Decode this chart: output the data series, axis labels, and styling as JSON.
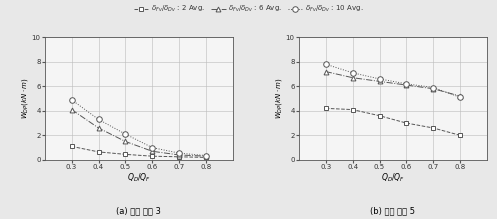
{
  "x": [
    0.3,
    0.4,
    0.5,
    0.6,
    0.7,
    0.8
  ],
  "left_series": {
    "sq": [
      1.1,
      0.65,
      0.45,
      0.3,
      0.25,
      0.2
    ],
    "tri": [
      4.1,
      2.6,
      1.5,
      0.7,
      0.4,
      0.3
    ],
    "circ": [
      4.9,
      3.3,
      2.1,
      1.0,
      0.55,
      0.35
    ]
  },
  "right_series": {
    "sq": [
      4.2,
      4.1,
      3.6,
      3.0,
      2.6,
      2.0
    ],
    "tri": [
      7.2,
      6.7,
      6.4,
      6.1,
      5.8,
      5.2
    ],
    "circ": [
      7.8,
      7.1,
      6.6,
      6.2,
      5.9,
      5.1
    ]
  },
  "xlim": [
    0.2,
    0.9
  ],
  "ylim": [
    0,
    10
  ],
  "xticks": [
    0.3,
    0.4,
    0.5,
    0.6,
    0.7,
    0.8
  ],
  "yticks": [
    0,
    2,
    4,
    6,
    8,
    10
  ],
  "xlabel": "$Q_D/Q_F$",
  "ylabel": "$W_{DP}$$(kN \\cdot m)$",
  "legend_labels": [
    "$\\delta_{Fv}/\\delta_{Dv}$ : 2 Avg.",
    "$\\delta_{Fv}/\\delta_{Dv}$ : 6 Avg.",
    "$\\delta_{Fv}/\\delta_{Dv}$ : 10 Avg."
  ],
  "caption_left": "(a) 주기 비율 3",
  "caption_right": "(b) 주기 비율 5",
  "bg_color": "#f5f5f5",
  "grid_color": "#bbbbbb",
  "line_color": "#555555"
}
